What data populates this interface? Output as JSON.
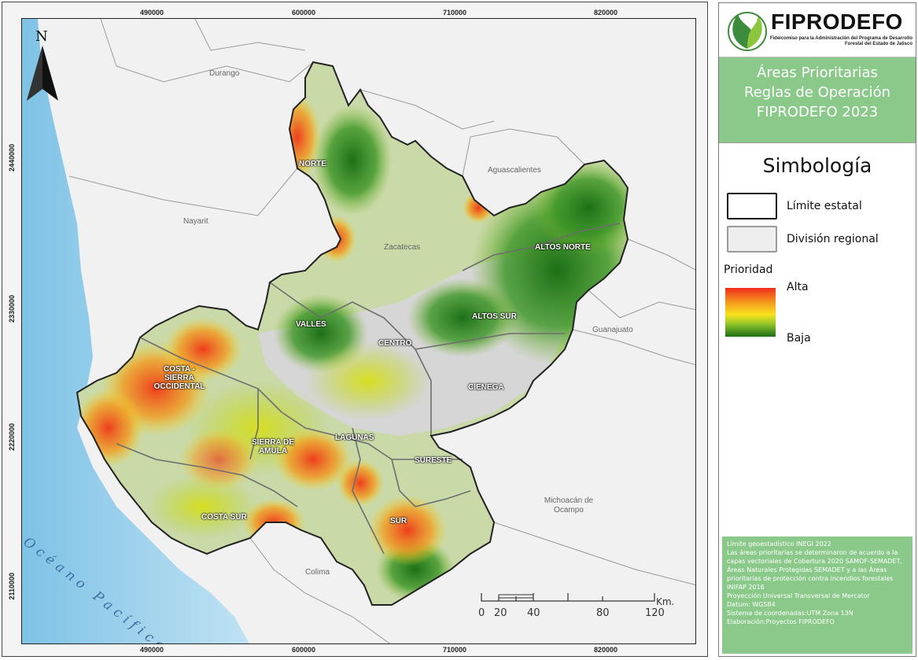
{
  "map": {
    "north_label": "N",
    "x_ticks": [
      "490000",
      "600000",
      "710000",
      "820000"
    ],
    "y_ticks": [
      "2440000",
      "2330000",
      "2220000",
      "2110000"
    ],
    "neighbor_states": [
      "Durango",
      "Nayarit",
      "Zacatecas",
      "Aguascalientes",
      "Guanajuato",
      "Michoacán de Ocampo",
      "Colima"
    ],
    "ocean_label": "Océano Pacífico",
    "regions": [
      "NORTE",
      "ALTOS NORTE",
      "ALTOS SUR",
      "VALLES",
      "CENTRO",
      "CIENEGA",
      "COSTA - SIERRA OCCIDENTAL",
      "SIERRA DE AMULA",
      "LAGUNAS",
      "SURESTE",
      "COSTA SUR",
      "SUR"
    ],
    "scale": {
      "labels": [
        "0",
        "20",
        "40",
        "80",
        "120"
      ],
      "unit": "Km."
    },
    "colors": {
      "ocean": "#9fd2ec",
      "land_outside": "#f1f1f1",
      "state_fill": "#c9d9a8",
      "high": "#f03a1c",
      "mid": "#f6e21a",
      "low": "#1e7a16"
    }
  },
  "panel": {
    "logo_name": "FIPRODEFO",
    "logo_subtitle": "Fideicomiso para la Administración del Programa de Desarrollo Forestal del Estado de Jalisco",
    "title_lines": [
      "Áreas Prioritarias",
      "Reglas de Operación",
      "FIPRODEFO 2023"
    ],
    "legend_title": "Simbología",
    "legend_items": [
      "Límite estatal",
      "División regional"
    ],
    "priority_title": "Prioridad",
    "priority_high": "Alta",
    "priority_low": "Baja",
    "notes": [
      "Límite geoestadístico INEGI 2022",
      "Las áreas prioritarias se determinaron de acuerdo a la capas vectoriales de Cobertura 2020 SAMOF-SEMADET, Áreas Naturales Protegidas SEMADET y a las Áreas prioritarias de protección contra incendios forestales INIFAP 2016",
      "Proyección Universal Transversal de Mercator",
      "Datum: WGS84",
      "Sistema de coordenadas:UTM Zona 13N",
      "Elaboración:Proyectos FIPRODEFO"
    ]
  }
}
